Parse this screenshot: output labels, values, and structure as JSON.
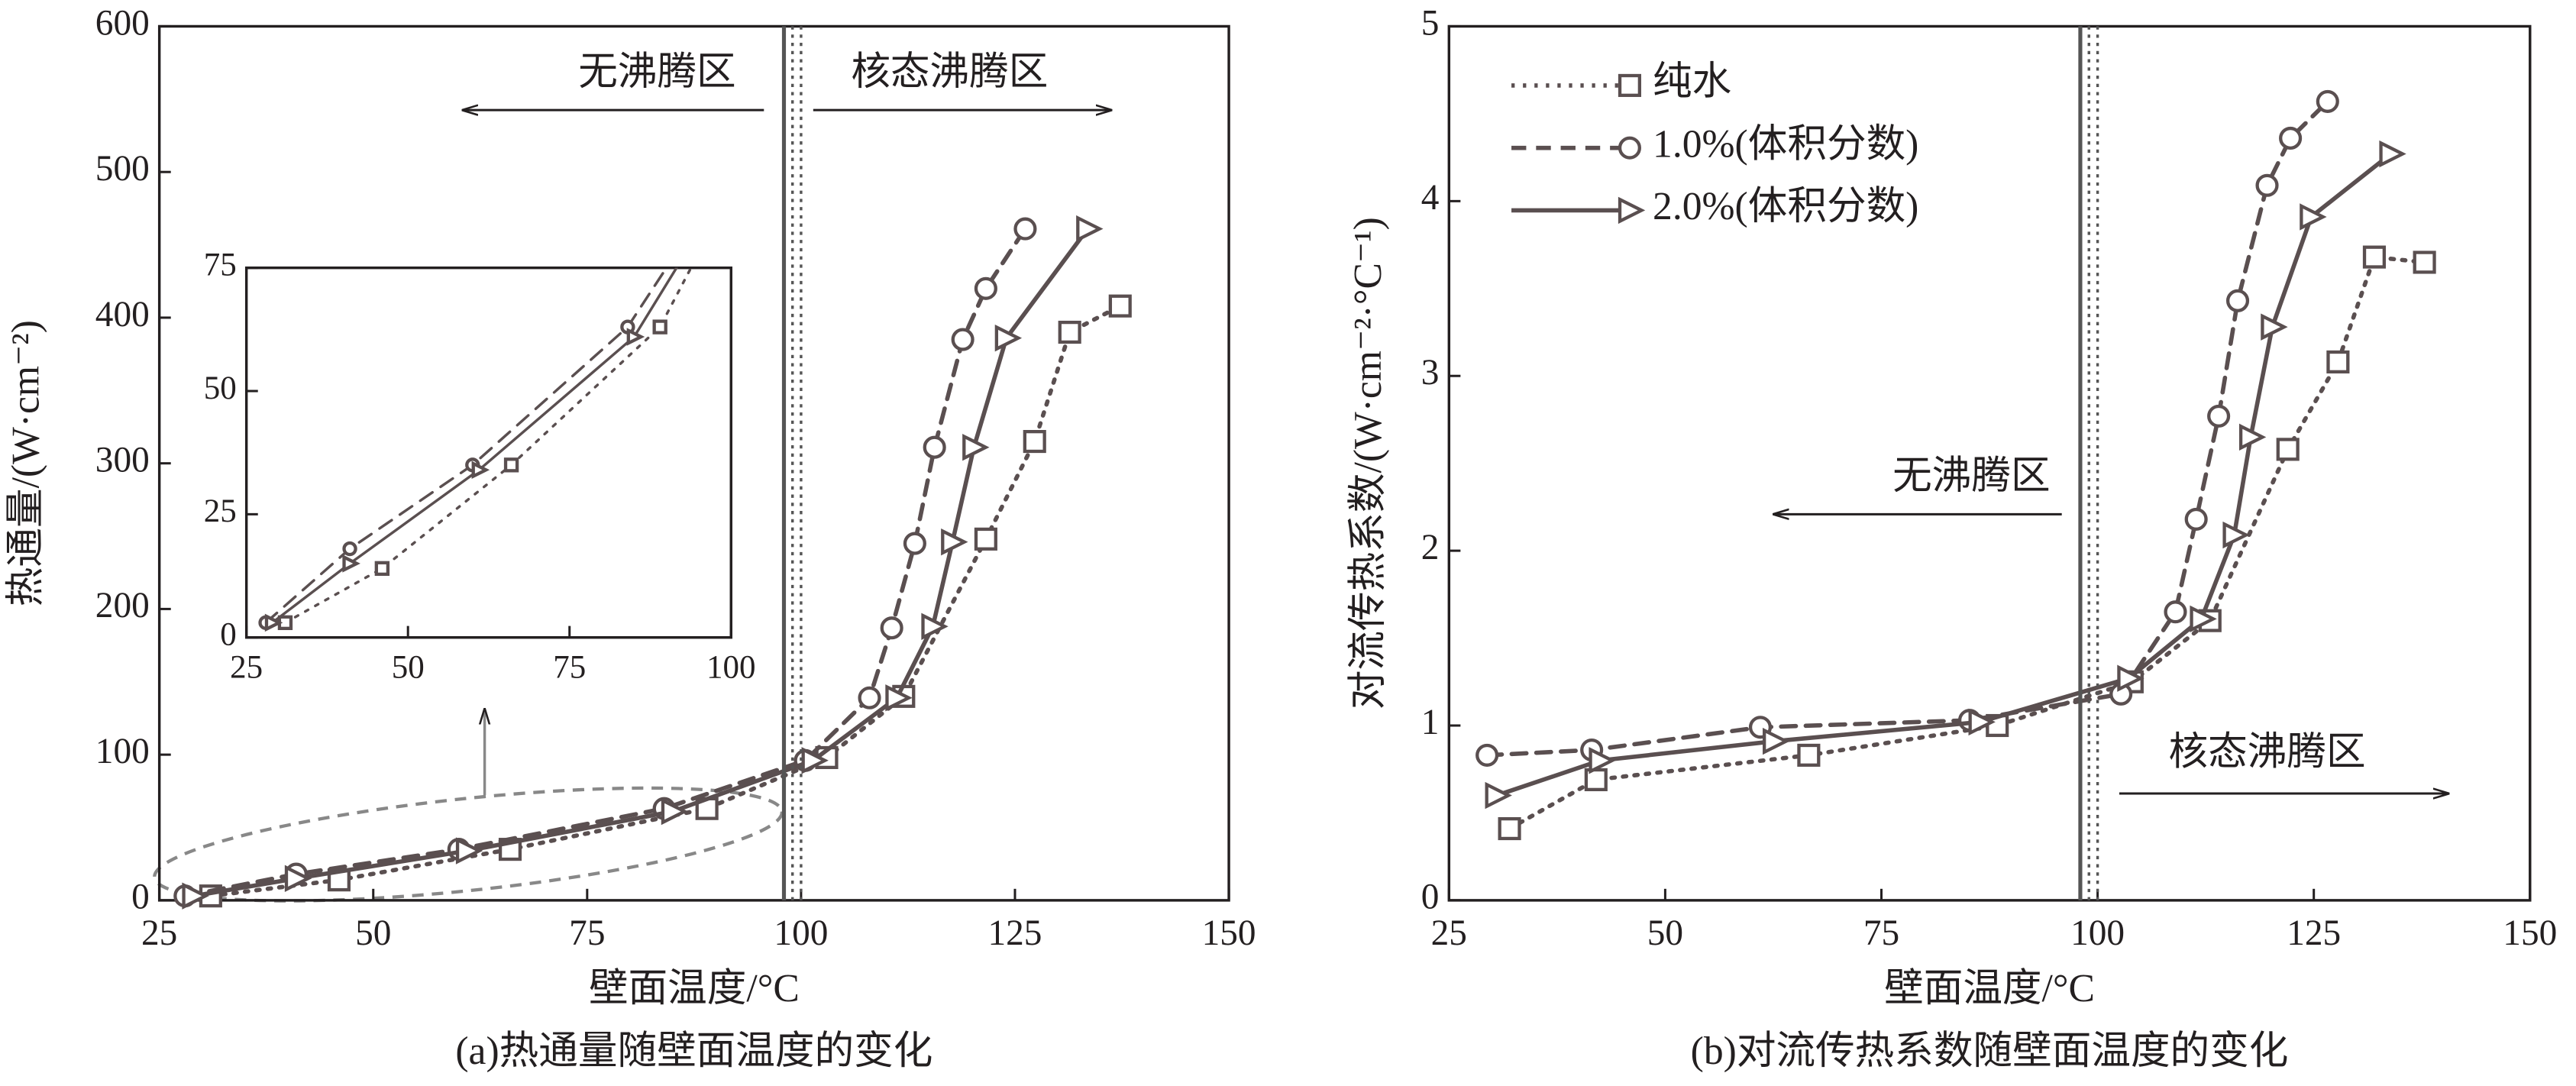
{
  "chart_data": [
    {
      "type": "line",
      "caption": "(a)热通量随壁面温度的变化",
      "x_label": "壁面温度/°C",
      "y_label": "热通量/(W·cm⁻²)",
      "xlim": [
        25,
        150
      ],
      "ylim": [
        0,
        600
      ],
      "xticks": [
        25,
        50,
        75,
        100,
        125,
        150
      ],
      "yticks": [
        0,
        100,
        200,
        300,
        400,
        500,
        600
      ],
      "vlines": [
        98,
        99,
        100
      ],
      "annotations": [
        "无沸腾区",
        "核态沸腾区"
      ],
      "series": [
        {
          "name": "纯水",
          "color": "#5a4f50",
          "linestyle": "dotted",
          "marker": "square",
          "x": [
            31,
            46,
            66,
            89,
            103,
            112,
            121.6,
            127.3,
            131.4,
            137.3
          ],
          "values": [
            3,
            14,
            35,
            63,
            98,
            140,
            248,
            315,
            390,
            408
          ]
        },
        {
          "name": "1.0%(体积分数)",
          "color": "#5a4f50",
          "linestyle": "dashed",
          "marker": "circle",
          "x": [
            28,
            41,
            60,
            84,
            100.5,
            108,
            110.6,
            113.3,
            115.6,
            118.9,
            121.6,
            126.2
          ],
          "values": [
            3,
            18,
            35,
            63,
            96,
            139,
            187,
            245,
            311,
            385,
            420,
            461
          ]
        },
        {
          "name": "2.0%(体积分数)",
          "color": "#5a4f50",
          "linestyle": "solid",
          "marker": "triangle",
          "x": [
            29,
            41,
            61,
            85,
            101.4,
            111.2,
            115.4,
            117.7,
            120.2,
            124,
            133.5
          ],
          "values": [
            3,
            15,
            34,
            61,
            96,
            139,
            188,
            246,
            311,
            386,
            461
          ]
        }
      ],
      "inset": {
        "xlim": [
          25,
          100
        ],
        "ylim": [
          0,
          75
        ],
        "xticks": [
          25,
          50,
          75,
          100
        ],
        "yticks": [
          0,
          25,
          50,
          75
        ]
      }
    },
    {
      "type": "line",
      "caption": "(b)对流传热系数随壁面温度的变化",
      "x_label": "壁面温度/°C",
      "y_label": "对流传热系数/(W·cm⁻²·°C⁻¹)",
      "xlim": [
        25,
        150
      ],
      "ylim": [
        0,
        5
      ],
      "xticks": [
        25,
        50,
        75,
        100,
        125,
        150
      ],
      "yticks": [
        0,
        1,
        2,
        3,
        4,
        5
      ],
      "vlines": [
        98,
        99,
        100
      ],
      "annotations": [
        "无沸腾区",
        "核态沸腾区"
      ],
      "series": [
        {
          "name": "纯水",
          "color": "#5a4f50",
          "linestyle": "dotted",
          "marker": "square",
          "x": [
            32,
            42,
            66.6,
            88.4,
            104,
            113,
            122,
            127.8,
            132,
            137.8
          ],
          "values": [
            0.41,
            0.69,
            0.83,
            1.0,
            1.25,
            1.6,
            2.58,
            3.08,
            3.68,
            3.65
          ]
        },
        {
          "name": "1.0%(体积分数)",
          "color": "#5a4f50",
          "linestyle": "dashed",
          "marker": "circle",
          "x": [
            29.4,
            41.5,
            61,
            85.2,
            102.7,
            109,
            111.4,
            114,
            116.2,
            119.6,
            122.3,
            126.6
          ],
          "values": [
            0.83,
            0.86,
            0.99,
            1.03,
            1.18,
            1.65,
            2.18,
            2.77,
            3.43,
            4.09,
            4.36,
            4.57
          ]
        },
        {
          "name": "2.0%(体积分数)",
          "color": "#5a4f50",
          "linestyle": "solid",
          "marker": "triangle",
          "x": [
            30.5,
            42.5,
            62.6,
            86.4,
            103.6,
            112,
            115.8,
            117.7,
            120.2,
            124.7,
            133.9
          ],
          "values": [
            0.6,
            0.8,
            0.91,
            1.02,
            1.27,
            1.61,
            2.09,
            2.65,
            3.28,
            3.91,
            4.27
          ]
        }
      ],
      "legend": "upper left"
    }
  ]
}
